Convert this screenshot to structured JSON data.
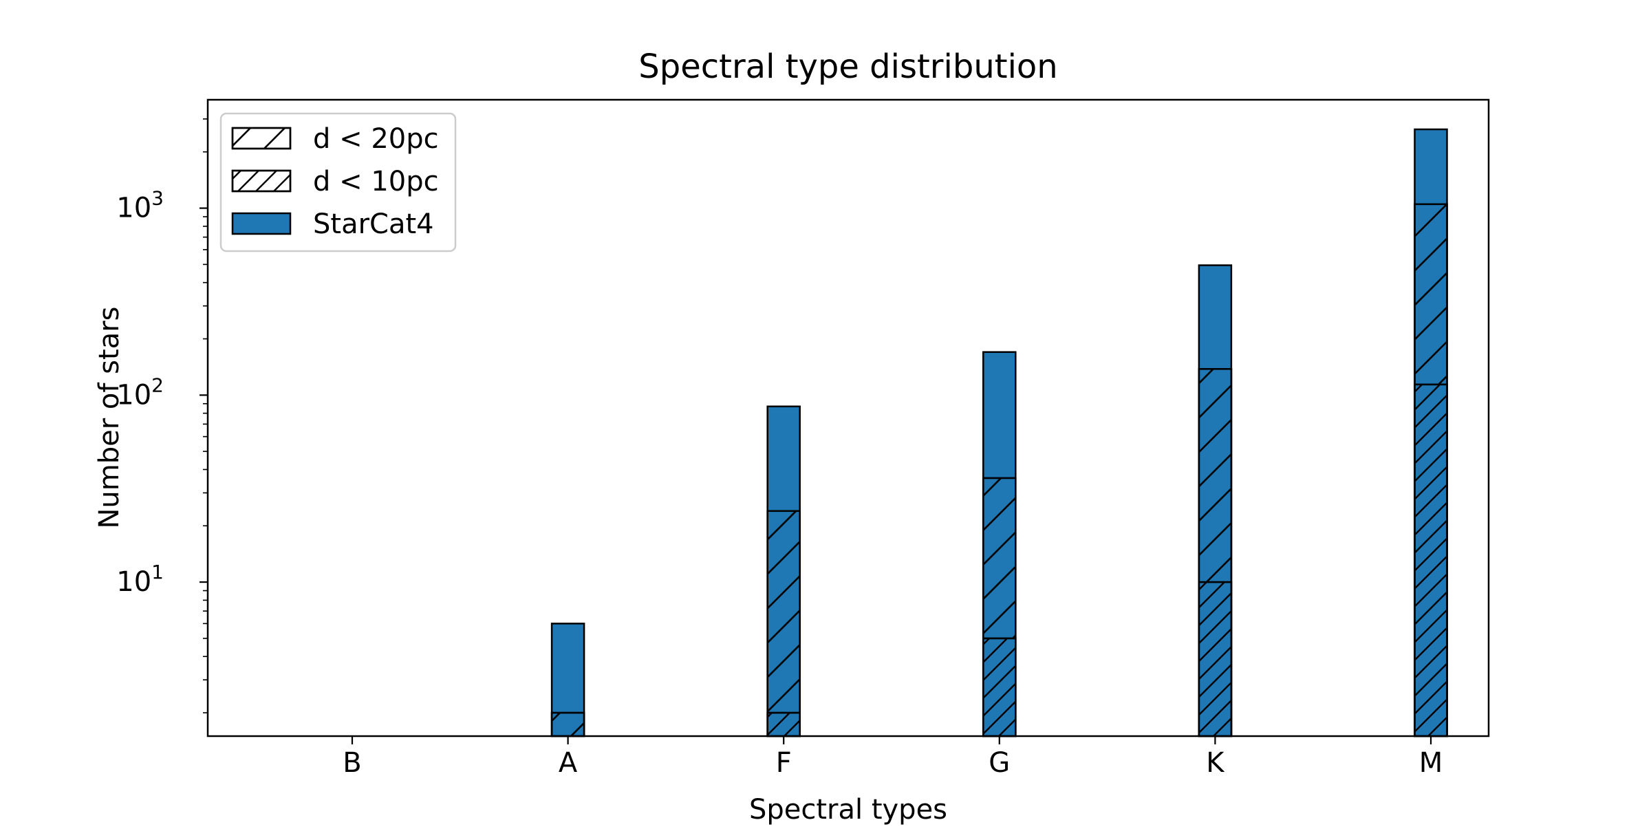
{
  "chart_data": {
    "type": "bar",
    "title": "Spectral type distribution",
    "xlabel": "Spectral types",
    "ylabel": "Number of stars",
    "yscale": "log",
    "ylim": [
      1.5,
      3800
    ],
    "categories": [
      "B",
      "A",
      "F",
      "G",
      "K",
      "M"
    ],
    "ytick_labels": [
      {
        "value": 10,
        "base": "10",
        "exp": "1"
      },
      {
        "value": 100,
        "base": "10",
        "exp": "2"
      },
      {
        "value": 1000,
        "base": "10",
        "exp": "3"
      }
    ],
    "legend": {
      "position": "top-left"
    },
    "series": [
      {
        "name": "StarCat4",
        "fill": "solid",
        "values": [
          0,
          6,
          87,
          170,
          495,
          2640
        ]
      },
      {
        "name": "d < 20pc",
        "fill": "hatch-sparse",
        "values": [
          0,
          2,
          24,
          36,
          138,
          1050
        ]
      },
      {
        "name": "d < 10pc",
        "fill": "hatch-dense",
        "values": [
          0,
          0,
          2,
          5,
          10,
          114
        ]
      }
    ],
    "colors": {
      "bar": "#1f77b4",
      "edge": "#000000",
      "legend_frame": "#cccccc"
    }
  }
}
